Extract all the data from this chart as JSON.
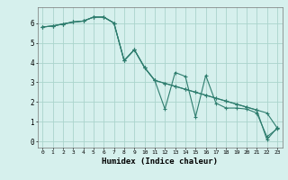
{
  "xlabel": "Humidex (Indice chaleur)",
  "ylabel": "",
  "bg_color": "#d6f0ed",
  "grid_color": "#aad4cc",
  "line_color": "#2e7d6e",
  "xlim": [
    -0.5,
    23.5
  ],
  "ylim": [
    -0.3,
    6.8
  ],
  "xticks": [
    0,
    1,
    2,
    3,
    4,
    5,
    6,
    7,
    8,
    9,
    10,
    11,
    12,
    13,
    14,
    15,
    16,
    17,
    18,
    19,
    20,
    21,
    22,
    23
  ],
  "yticks": [
    0,
    1,
    2,
    3,
    4,
    5,
    6
  ],
  "series": [
    [
      5.8,
      5.85,
      5.95,
      6.05,
      6.1,
      6.3,
      6.3,
      6.0,
      4.1,
      4.65,
      3.75,
      3.1,
      1.65,
      3.5,
      3.3,
      1.25,
      3.35,
      1.95,
      1.7,
      1.7,
      1.65,
      1.45,
      0.25,
      0.65
    ],
    [
      5.8,
      5.85,
      5.95,
      6.05,
      6.1,
      6.3,
      6.3,
      6.0,
      4.1,
      4.65,
      3.75,
      3.1,
      2.95,
      2.8,
      2.65,
      2.5,
      2.35,
      2.2,
      2.05,
      1.9,
      1.75,
      1.6,
      1.45,
      0.7
    ],
    [
      5.8,
      5.85,
      5.95,
      6.05,
      6.1,
      6.3,
      6.3,
      6.0,
      4.1,
      4.65,
      3.75,
      3.1,
      2.95,
      2.8,
      2.65,
      2.5,
      2.35,
      2.2,
      2.05,
      1.9,
      1.75,
      1.6,
      0.1,
      0.7
    ]
  ]
}
